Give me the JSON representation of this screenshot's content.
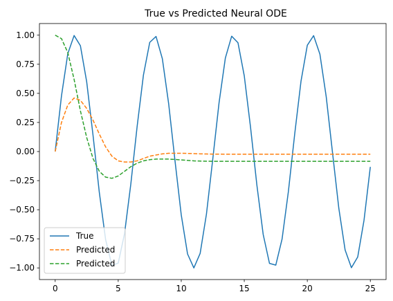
{
  "chart_data": {
    "type": "line",
    "title": "True vs Predicted Neural ODE",
    "xlabel": "",
    "ylabel": "",
    "xlim": [
      -1.25,
      26.25
    ],
    "ylim": [
      -1.1,
      1.1
    ],
    "xticks": [
      0,
      5,
      10,
      15,
      20,
      25
    ],
    "yticks": [
      -1.0,
      -0.75,
      -0.5,
      -0.25,
      0.0,
      0.25,
      0.5,
      0.75,
      1.0
    ],
    "xtick_labels": [
      "0",
      "5",
      "10",
      "15",
      "20",
      "25"
    ],
    "ytick_labels": [
      "−1.00",
      "−0.75",
      "−0.50",
      "−0.25",
      "0.00",
      "0.25",
      "0.50",
      "0.75",
      "1.00"
    ],
    "grid": false,
    "legend_position": "lower-left",
    "x": [
      0,
      0.5,
      1,
      1.5,
      2,
      2.5,
      3,
      3.5,
      4,
      4.5,
      5,
      5.5,
      6,
      6.5,
      7,
      7.5,
      8,
      8.5,
      9,
      9.5,
      10,
      10.5,
      11,
      11.5,
      12,
      12.5,
      13,
      13.5,
      14,
      14.5,
      15,
      15.5,
      16,
      16.5,
      17,
      17.5,
      18,
      18.5,
      19,
      19.5,
      20,
      20.5,
      21,
      21.5,
      22,
      22.5,
      23,
      23.5,
      24,
      24.5,
      25
    ],
    "series": [
      {
        "name": "True",
        "color": "#1f77b4",
        "style": "solid",
        "values": [
          0.0,
          0.479,
          0.841,
          0.997,
          0.909,
          0.598,
          0.141,
          -0.351,
          -0.757,
          -0.978,
          -0.959,
          -0.706,
          -0.279,
          0.215,
          0.657,
          0.938,
          0.989,
          0.798,
          0.412,
          -0.075,
          -0.544,
          -0.88,
          -1.0,
          -0.875,
          -0.537,
          -0.066,
          0.42,
          0.804,
          0.991,
          0.935,
          0.65,
          0.206,
          -0.288,
          -0.712,
          -0.961,
          -0.976,
          -0.751,
          -0.343,
          0.15,
          0.604,
          0.913,
          0.996,
          0.837,
          0.472,
          -0.009,
          -0.487,
          -0.846,
          -0.998,
          -0.906,
          -0.59,
          -0.132
        ]
      },
      {
        "name": "Predicted",
        "color": "#ff7f0e",
        "style": "dashed",
        "values": [
          0.0,
          0.25,
          0.4,
          0.46,
          0.44,
          0.37,
          0.27,
          0.15,
          0.04,
          -0.04,
          -0.08,
          -0.09,
          -0.09,
          -0.08,
          -0.06,
          -0.04,
          -0.03,
          -0.02,
          -0.015,
          -0.015,
          -0.015,
          -0.016,
          -0.018,
          -0.02,
          -0.021,
          -0.022,
          -0.022,
          -0.023,
          -0.023,
          -0.023,
          -0.023,
          -0.023,
          -0.023,
          -0.023,
          -0.023,
          -0.023,
          -0.023,
          -0.023,
          -0.023,
          -0.023,
          -0.023,
          -0.023,
          -0.023,
          -0.023,
          -0.023,
          -0.023,
          -0.023,
          -0.023,
          -0.023,
          -0.023,
          -0.023
        ]
      },
      {
        "name": "Predicted",
        "color": "#2ca02c",
        "style": "dashed",
        "values": [
          1.0,
          0.97,
          0.85,
          0.62,
          0.35,
          0.12,
          -0.06,
          -0.17,
          -0.22,
          -0.23,
          -0.21,
          -0.17,
          -0.13,
          -0.1,
          -0.08,
          -0.07,
          -0.065,
          -0.065,
          -0.065,
          -0.068,
          -0.072,
          -0.076,
          -0.08,
          -0.082,
          -0.083,
          -0.084,
          -0.084,
          -0.084,
          -0.084,
          -0.084,
          -0.084,
          -0.084,
          -0.084,
          -0.084,
          -0.084,
          -0.084,
          -0.084,
          -0.084,
          -0.084,
          -0.084,
          -0.084,
          -0.084,
          -0.084,
          -0.084,
          -0.084,
          -0.084,
          -0.084,
          -0.084,
          -0.084,
          -0.084,
          -0.084
        ]
      }
    ]
  }
}
